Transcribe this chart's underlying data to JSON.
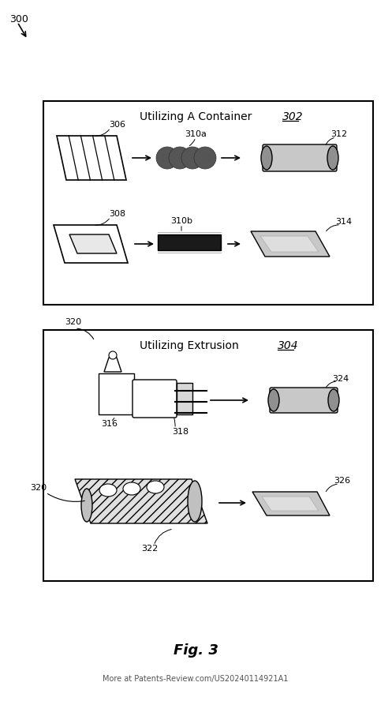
{
  "bg_color": "#ffffff",
  "fig_title": "Fig. 3",
  "watermark": "More at Patents-Review.com/US20240114921A1",
  "label_300": "300",
  "label_302": "302",
  "label_304": "304",
  "label_306": "306",
  "label_308": "308",
  "label_310a": "310a",
  "label_310b": "310b",
  "label_312": "312",
  "label_314": "314",
  "label_316": "316",
  "label_318": "318",
  "label_320a": "320",
  "label_320b": "320",
  "label_322": "322",
  "label_324": "324",
  "label_326": "326",
  "box1_title": "Utilizing A Container",
  "box2_title": "Utilizing Extrusion",
  "gray_light": "#c8c8c8",
  "gray_med": "#909090",
  "dark_sphere": "#555555",
  "sphere_outline": "#333333"
}
